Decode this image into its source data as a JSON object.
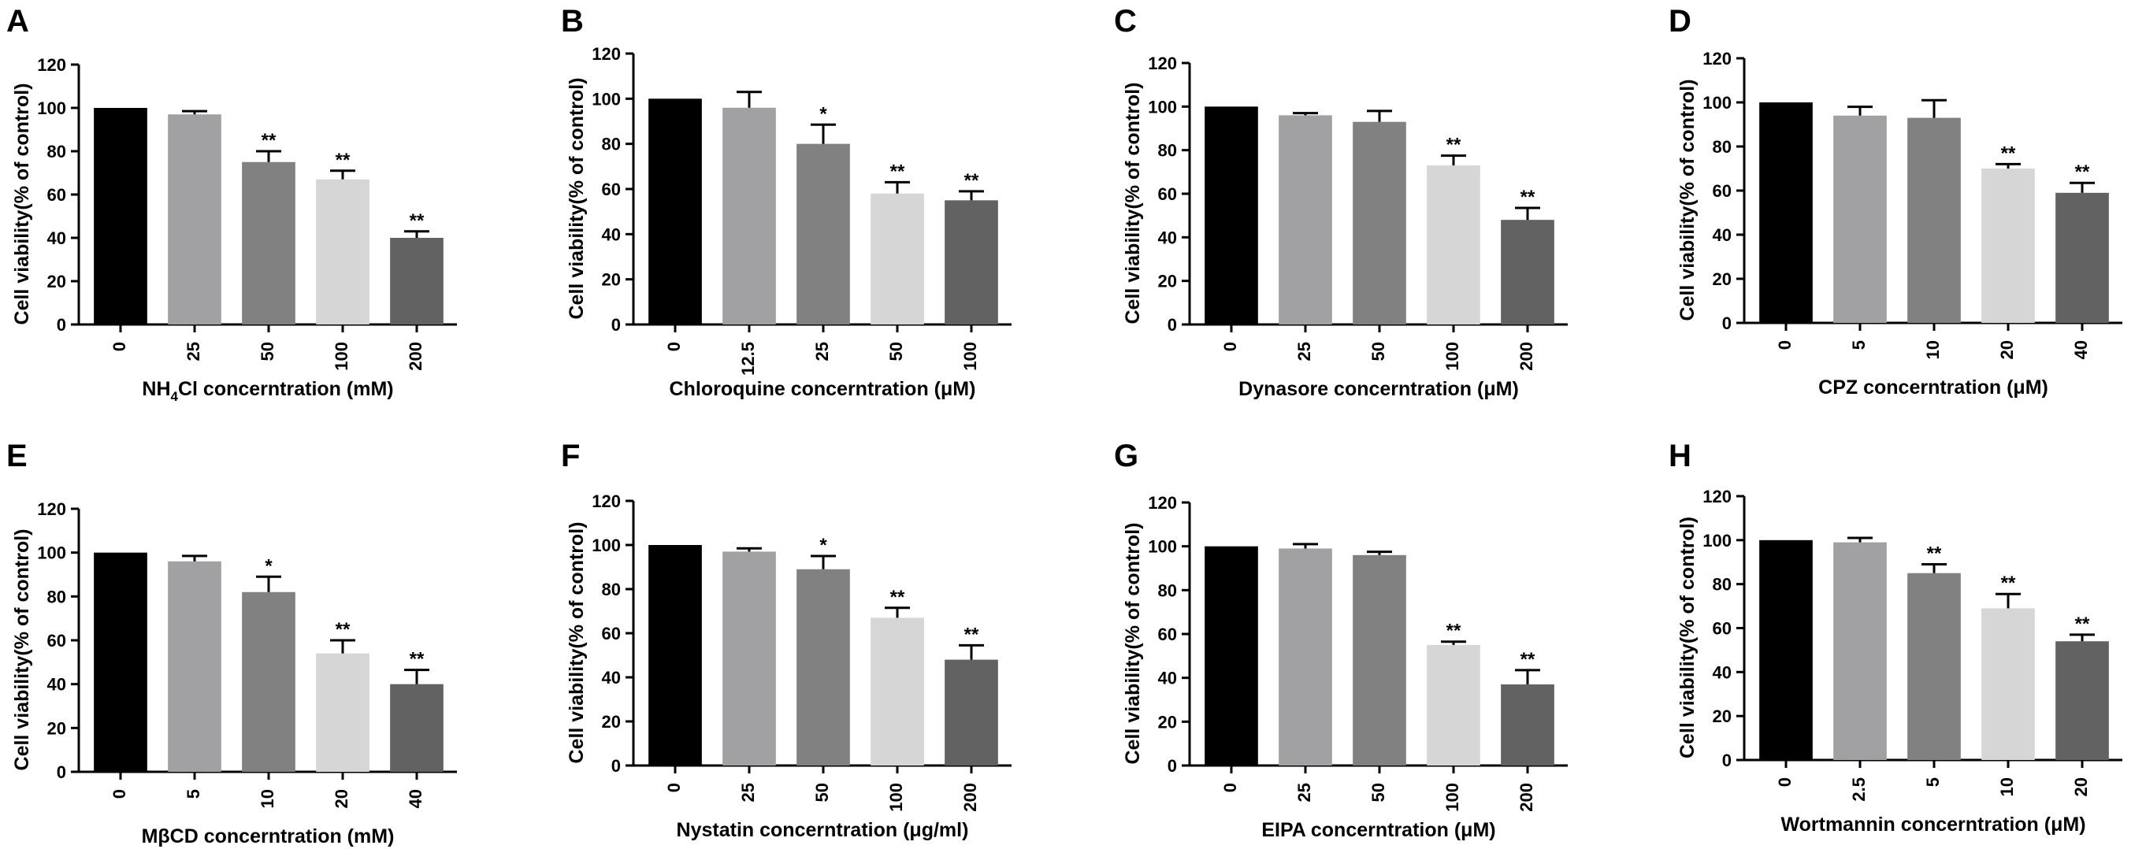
{
  "chart_data": [
    {
      "panel": "A",
      "type": "bar",
      "categories": [
        "0",
        "25",
        "50",
        "100",
        "200"
      ],
      "values": [
        100,
        97,
        75,
        67,
        40
      ],
      "errors": [
        0,
        1.5,
        5,
        4,
        3
      ],
      "significance": [
        "",
        "",
        "**",
        "**",
        "**"
      ],
      "xlabel": "NH4Cl concerntration (mM)",
      "xlabel_parts": [
        "NH",
        "4",
        "Cl concerntration (mM)"
      ],
      "ylabel": "Cell viability(% of control)",
      "ylim": [
        0,
        120
      ],
      "yticks": [
        "0",
        "20",
        "40",
        "60",
        "80",
        "100",
        "120"
      ]
    },
    {
      "panel": "B",
      "type": "bar",
      "categories": [
        "0",
        "12.5",
        "25",
        "50",
        "100"
      ],
      "values": [
        100,
        96,
        80,
        58,
        55
      ],
      "errors": [
        0,
        7,
        8.5,
        5,
        4
      ],
      "significance": [
        "",
        "",
        "*",
        "**",
        "**"
      ],
      "xlabel": "Chloroquine concerntration (μM)",
      "ylabel": "Cell viability(% of control)",
      "ylim": [
        0,
        120
      ],
      "yticks": [
        "0",
        "20",
        "40",
        "60",
        "80",
        "100",
        "120"
      ]
    },
    {
      "panel": "C",
      "type": "bar",
      "categories": [
        "0",
        "25",
        "50",
        "100",
        "200"
      ],
      "values": [
        100,
        96,
        93,
        73,
        48
      ],
      "errors": [
        0,
        1,
        5,
        4.5,
        5.5
      ],
      "significance": [
        "",
        "",
        "",
        "**",
        "**"
      ],
      "xlabel": "Dynasore concerntration (μM)",
      "ylabel": "Cell viability(% of control)",
      "ylim": [
        0,
        120
      ],
      "yticks": [
        "0",
        "20",
        "40",
        "60",
        "80",
        "100",
        "120"
      ]
    },
    {
      "panel": "D",
      "type": "bar",
      "categories": [
        "0",
        "5",
        "10",
        "20",
        "40"
      ],
      "values": [
        100,
        94,
        93,
        70,
        59
      ],
      "errors": [
        0,
        4,
        8,
        2,
        4.5
      ],
      "significance": [
        "",
        "",
        "",
        "**",
        "**"
      ],
      "xlabel": "CPZ concerntration (μM)",
      "ylabel": "Cell viability(% of control)",
      "ylim": [
        0,
        120
      ],
      "yticks": [
        "0",
        "20",
        "40",
        "60",
        "80",
        "100",
        "120"
      ]
    },
    {
      "panel": "E",
      "type": "bar",
      "categories": [
        "0",
        "5",
        "10",
        "20",
        "40"
      ],
      "values": [
        100,
        96,
        82,
        54,
        40
      ],
      "errors": [
        0,
        2.5,
        7,
        6,
        6.5
      ],
      "significance": [
        "",
        "",
        "*",
        "**",
        "**"
      ],
      "xlabel": "MβCD concerntration (mM)",
      "ylabel": "Cell viability(% of control)",
      "ylim": [
        0,
        120
      ],
      "yticks": [
        "0",
        "20",
        "40",
        "60",
        "80",
        "100",
        "120"
      ]
    },
    {
      "panel": "F",
      "type": "bar",
      "categories": [
        "0",
        "25",
        "50",
        "100",
        "200"
      ],
      "values": [
        100,
        97,
        89,
        67,
        48
      ],
      "errors": [
        0,
        1.5,
        6,
        4.5,
        6.5
      ],
      "significance": [
        "",
        "",
        "*",
        "**",
        "**"
      ],
      "xlabel": "Nystatin concerntration (μg/ml)",
      "ylabel": "Cell viability(% of control)",
      "ylim": [
        0,
        120
      ],
      "yticks": [
        "0",
        "20",
        "40",
        "60",
        "80",
        "100",
        "120"
      ]
    },
    {
      "panel": "G",
      "type": "bar",
      "categories": [
        "0",
        "25",
        "50",
        "100",
        "200"
      ],
      "values": [
        100,
        99,
        96,
        55,
        37
      ],
      "errors": [
        0,
        2,
        1.5,
        1.5,
        6.5
      ],
      "significance": [
        "",
        "",
        "",
        "**",
        "**"
      ],
      "xlabel": "EIPA concerntration (μM)",
      "ylabel": "Cell viability(% of control)",
      "ylim": [
        0,
        120
      ],
      "yticks": [
        "0",
        "20",
        "40",
        "60",
        "80",
        "100",
        "120"
      ]
    },
    {
      "panel": "H",
      "type": "bar",
      "categories": [
        "0",
        "2.5",
        "5",
        "10",
        "20"
      ],
      "values": [
        100,
        99,
        85,
        69,
        54
      ],
      "errors": [
        0,
        2,
        4,
        6.5,
        3
      ],
      "significance": [
        "",
        "",
        "**",
        "**",
        "**"
      ],
      "xlabel": "Wortmannin concerntration (μM)",
      "ylabel": "Cell viability(% of control)",
      "ylim": [
        0,
        120
      ],
      "yticks": [
        "0",
        "20",
        "40",
        "60",
        "80",
        "100",
        "120"
      ]
    }
  ],
  "colors": {
    "bar_fills": [
      "#000000",
      "#a1a1a4",
      "#818181",
      "#d6d6d6",
      "#626262"
    ],
    "axis": "#000000",
    "text": "#000000"
  }
}
